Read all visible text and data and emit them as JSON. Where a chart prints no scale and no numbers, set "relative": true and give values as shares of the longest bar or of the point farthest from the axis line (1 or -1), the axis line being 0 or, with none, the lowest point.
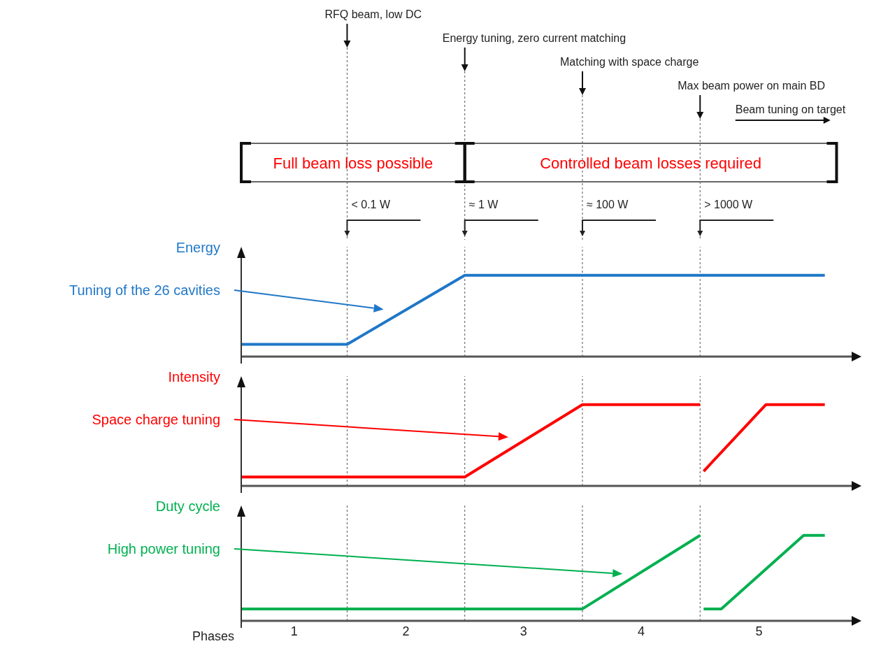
{
  "chart_data": [
    {
      "type": "line",
      "relative": true,
      "ylabel": "Energy",
      "xlim": [
        0.1,
        5.3
      ],
      "tick_labels": false,
      "series": [
        {
          "color": "#1f77c8",
          "x": [
            0.1,
            1,
            2,
            5.06
          ],
          "values": [
            0.15,
            0.15,
            1,
            1
          ]
        }
      ],
      "ref_lines": [
        {
          "axis": "x",
          "value": 1
        },
        {
          "axis": "x",
          "value": 2
        },
        {
          "axis": "x",
          "value": 3
        },
        {
          "axis": "x",
          "value": 4
        }
      ],
      "annotations": [
        "RFQ beam, low DC",
        "Energy tuning, zero current matching",
        "Matching with space charge",
        "Max beam power on main BD",
        "Beam tuning on target",
        "Full beam loss possible",
        "Controlled beam losses required",
        "< 0.1 W",
        "≈ 1 W",
        "≈ 100 W",
        "> 1000 W",
        "Tuning of the 26 cavities"
      ]
    },
    {
      "type": "line",
      "relative": true,
      "ylabel": "Intensity",
      "xlim": [
        0.1,
        5.3
      ],
      "tick_labels": false,
      "series": [
        {
          "color": "#ff0000",
          "x": [
            0.1,
            2,
            3,
            4,
            4.02,
            4.03,
            4.56,
            5.06
          ],
          "values": [
            0.11,
            0.11,
            1,
            1,
            null,
            0.18,
            1,
            1
          ]
        }
      ],
      "ref_lines": [
        {
          "axis": "x",
          "value": 1
        },
        {
          "axis": "x",
          "value": 2
        },
        {
          "axis": "x",
          "value": 3
        },
        {
          "axis": "x",
          "value": 4
        }
      ],
      "annotations": [
        "Space charge tuning"
      ]
    },
    {
      "type": "line",
      "relative": true,
      "ylabel": "Duty cycle",
      "xlabel": "Phases",
      "xlim": [
        0.1,
        5.3
      ],
      "tick_labels": "x",
      "xticks": [
        {
          "value": 0.55,
          "label": "1"
        },
        {
          "value": 1.5,
          "label": "2"
        },
        {
          "value": 2.5,
          "label": "3"
        },
        {
          "value": 3.5,
          "label": "4"
        },
        {
          "value": 4.5,
          "label": "5"
        }
      ],
      "series": [
        {
          "color": "#00b050",
          "x": [
            0.1,
            3,
            4,
            4.02,
            4.03,
            4.18,
            4.88,
            5.06
          ],
          "values": [
            0.14,
            0.14,
            1,
            null,
            0.14,
            0.14,
            1,
            1
          ]
        }
      ],
      "ref_lines": [
        {
          "axis": "x",
          "value": 1
        },
        {
          "axis": "x",
          "value": 2
        },
        {
          "axis": "x",
          "value": 3
        },
        {
          "axis": "x",
          "value": 4
        }
      ],
      "annotations": [
        "High power tuning"
      ]
    }
  ]
}
